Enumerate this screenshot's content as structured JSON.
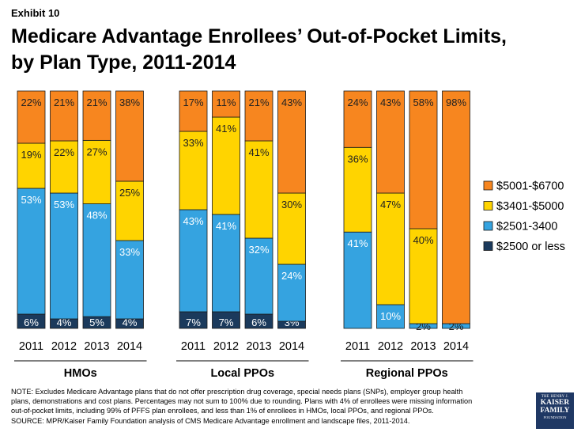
{
  "exhibit": "Exhibit 10",
  "title_line1": "Medicare Advantage Enrollees’ Out-of-Pocket Limits,",
  "title_line2": "by Plan Type, 2011-2014",
  "chart_data": {
    "type": "bar",
    "stacked": true,
    "normalized": true,
    "title": "Medicare Advantage Enrollees’ Out-of-Pocket Limits, by Plan Type, 2011-2014",
    "series_order_bottom_to_top": [
      "$2500 or less",
      "$2501-3400",
      "$3401-$5000",
      "$5001-$6700"
    ],
    "colors": {
      "$5001-$6700": "#f7861f",
      "$3401-$5000": "#ffd400",
      "$2501-3400": "#35a3e0",
      "$2500 or less": "#1b3a5c"
    },
    "legend": [
      "$5001-$6700",
      "$3401-$5000",
      "$2501-3400",
      "$2500 or less"
    ],
    "groups": [
      {
        "name": "HMOs",
        "bars": [
          {
            "year": "2011",
            "values": [
              6,
              53,
              19,
              22
            ],
            "labels": [
              "6%",
              "53%",
              "19%",
              "22%"
            ]
          },
          {
            "year": "2012",
            "values": [
              4,
              53,
              22,
              21
            ],
            "labels": [
              "4%",
              "53%",
              "22%",
              "21%"
            ]
          },
          {
            "year": "2013",
            "values": [
              5,
              48,
              27,
              21
            ],
            "labels": [
              "5%",
              "48%",
              "27%",
              "21%"
            ]
          },
          {
            "year": "2014",
            "values": [
              4,
              33,
              25,
              38
            ],
            "labels": [
              "4%",
              "33%",
              "25%",
              "38%"
            ]
          }
        ]
      },
      {
        "name": "Local PPOs",
        "bars": [
          {
            "year": "2011",
            "values": [
              7,
              43,
              33,
              17
            ],
            "labels": [
              "7%",
              "43%",
              "33%",
              "17%"
            ]
          },
          {
            "year": "2012",
            "values": [
              7,
              41,
              41,
              11
            ],
            "labels": [
              "7%",
              "41%",
              "41%",
              "11%"
            ]
          },
          {
            "year": "2013",
            "values": [
              6,
              32,
              41,
              21
            ],
            "labels": [
              "6%",
              "32%",
              "41%",
              "21%"
            ]
          },
          {
            "year": "2014",
            "values": [
              3,
              24,
              30,
              43
            ],
            "labels": [
              "3%",
              "24%",
              "30%",
              "43%"
            ]
          }
        ]
      },
      {
        "name": "Regional PPOs",
        "bars": [
          {
            "year": "2011",
            "values": [
              0,
              41,
              36,
              24
            ],
            "labels": [
              "",
              "41%",
              "36%",
              "24%"
            ]
          },
          {
            "year": "2012",
            "values": [
              0,
              10,
              47,
              43
            ],
            "labels": [
              "",
              "10%",
              "47%",
              "43%"
            ]
          },
          {
            "year": "2013",
            "values": [
              0,
              2,
              40,
              58
            ],
            "labels": [
              "",
              "2%",
              "40%",
              "58%"
            ]
          },
          {
            "year": "2014",
            "values": [
              0,
              2,
              0,
              98
            ],
            "labels": [
              "",
              "2%",
              "",
              "98%"
            ]
          }
        ]
      }
    ]
  },
  "note_line1": "NOTE: Excludes Medicare Advantage plans that do not offer prescription drug coverage, special needs plans (SNPs), employer group health",
  "note_line2": "plans, demonstrations and cost plans.  Percentages may not sum to 100% due to rounding. Plans with 4% of enrollees were missing information",
  "note_line3": "out-of-pocket limits, including 99% of PFFS plan enrollees, and less than 1% of enrollees in HMOs, local PPOs, and regional PPOs.",
  "note_line4": "SOURCE: MPR/Kaiser Family Foundation analysis of CMS Medicare Advantage enrollment and landscape files, 2011-2014.",
  "logo": {
    "line1": "THE HENRY J.",
    "line2": "KAISER",
    "line3": "FAMILY",
    "line4": "FOUNDATION"
  }
}
